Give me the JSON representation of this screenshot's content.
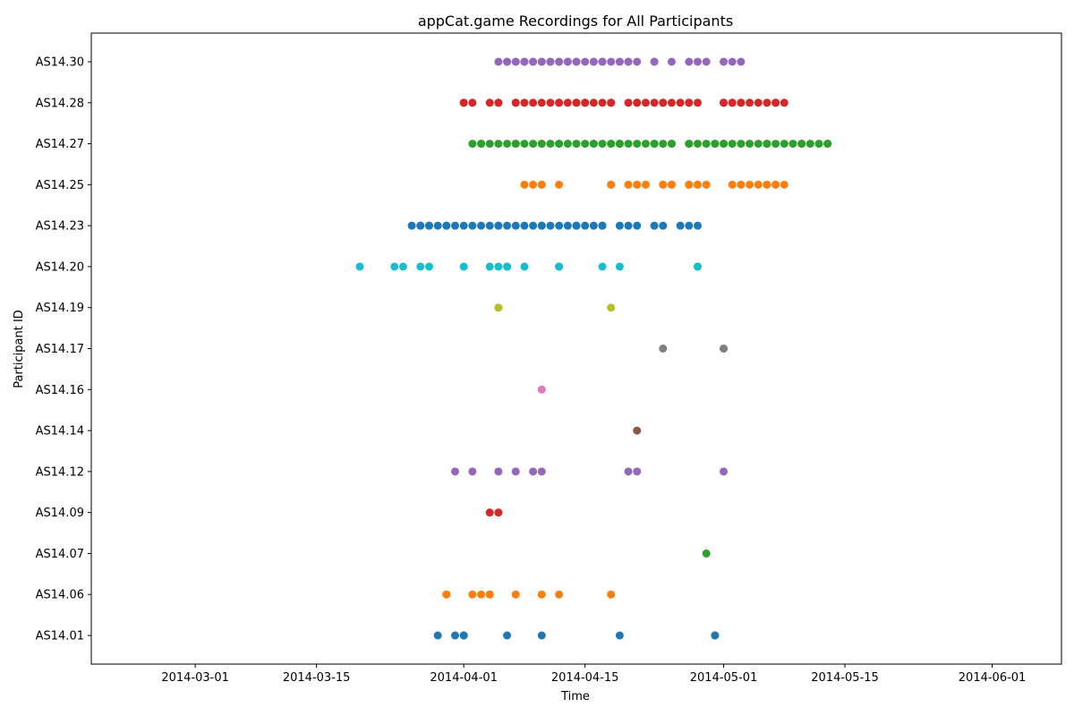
{
  "chart_data": {
    "type": "scatter",
    "title": "appCat.game Recordings for All Participants",
    "xlabel": "Time",
    "ylabel": "Participant ID",
    "x_ticks": [
      "2014-03-01",
      "2014-03-15",
      "2014-04-01",
      "2014-04-15",
      "2014-05-01",
      "2014-05-15",
      "2014-06-01"
    ],
    "xlim": [
      "2014-02-17",
      "2014-06-09"
    ],
    "categories": [
      "AS14.01",
      "AS14.06",
      "AS14.07",
      "AS14.09",
      "AS14.12",
      "AS14.14",
      "AS14.16",
      "AS14.17",
      "AS14.19",
      "AS14.20",
      "AS14.23",
      "AS14.25",
      "AS14.27",
      "AS14.28",
      "AS14.30"
    ],
    "grid": false,
    "legend": "none",
    "series": [
      {
        "participant": "AS14.01",
        "color": "#1f77b4",
        "x": [
          "2014-03-29",
          "2014-03-31",
          "2014-04-01",
          "2014-04-01",
          "2014-04-06",
          "2014-04-10",
          "2014-04-19",
          "2014-04-30",
          "2014-04-30"
        ]
      },
      {
        "participant": "AS14.06",
        "color": "#ff7f0e",
        "x": [
          "2014-03-30",
          "2014-03-30",
          "2014-04-02",
          "2014-04-03",
          "2014-04-04",
          "2014-04-04",
          "2014-04-07",
          "2014-04-10",
          "2014-04-12",
          "2014-04-18"
        ]
      },
      {
        "participant": "AS14.07",
        "color": "#2ca02c",
        "x": [
          "2014-04-29"
        ]
      },
      {
        "participant": "AS14.09",
        "color": "#d62728",
        "x": [
          "2014-04-04",
          "2014-04-05"
        ]
      },
      {
        "participant": "AS14.12",
        "color": "#9467bd",
        "x": [
          "2014-03-31",
          "2014-04-02",
          "2014-04-05",
          "2014-04-07",
          "2014-04-09",
          "2014-04-10",
          "2014-04-20",
          "2014-04-21",
          "2014-05-01"
        ]
      },
      {
        "participant": "AS14.14",
        "color": "#8c564b",
        "x": [
          "2014-04-21"
        ]
      },
      {
        "participant": "AS14.16",
        "color": "#e377c2",
        "x": [
          "2014-04-10"
        ]
      },
      {
        "participant": "AS14.17",
        "color": "#7f7f7f",
        "x": [
          "2014-04-24",
          "2014-05-01",
          "2014-05-01"
        ]
      },
      {
        "participant": "AS14.19",
        "color": "#bcbd22",
        "x": [
          "2014-04-05",
          "2014-04-05",
          "2014-04-18"
        ]
      },
      {
        "participant": "AS14.20",
        "color": "#17becf",
        "x": [
          "2014-03-20",
          "2014-03-24",
          "2014-03-25",
          "2014-03-27",
          "2014-03-28",
          "2014-04-01",
          "2014-04-04",
          "2014-04-05",
          "2014-04-06",
          "2014-04-06",
          "2014-04-08",
          "2014-04-12",
          "2014-04-12",
          "2014-04-17",
          "2014-04-19",
          "2014-04-28",
          "2014-04-28"
        ]
      },
      {
        "participant": "AS14.23",
        "color": "#1f77b4",
        "x": [
          "2014-03-26",
          "2014-03-27",
          "2014-03-27",
          "2014-03-28",
          "2014-03-28",
          "2014-03-29",
          "2014-03-30",
          "2014-03-30",
          "2014-03-31",
          "2014-04-01",
          "2014-04-02",
          "2014-04-03",
          "2014-04-04",
          "2014-04-05",
          "2014-04-05",
          "2014-04-06",
          "2014-04-07",
          "2014-04-08",
          "2014-04-09",
          "2014-04-10",
          "2014-04-10",
          "2014-04-11",
          "2014-04-12",
          "2014-04-13",
          "2014-04-14",
          "2014-04-14",
          "2014-04-15",
          "2014-04-16",
          "2014-04-17",
          "2014-04-17",
          "2014-04-19",
          "2014-04-20",
          "2014-04-21",
          "2014-04-23",
          "2014-04-24",
          "2014-04-26",
          "2014-04-27",
          "2014-04-28"
        ]
      },
      {
        "participant": "AS14.25",
        "color": "#ff7f0e",
        "x": [
          "2014-04-08",
          "2014-04-09",
          "2014-04-10",
          "2014-04-10",
          "2014-04-12",
          "2014-04-18",
          "2014-04-18",
          "2014-04-20",
          "2014-04-21",
          "2014-04-21",
          "2014-04-22",
          "2014-04-24",
          "2014-04-24",
          "2014-04-25",
          "2014-04-25",
          "2014-04-27",
          "2014-04-27",
          "2014-04-28",
          "2014-04-28",
          "2014-04-29",
          "2014-05-02",
          "2014-05-03",
          "2014-05-03",
          "2014-05-04",
          "2014-05-05",
          "2014-05-06",
          "2014-05-06",
          "2014-05-07",
          "2014-05-07",
          "2014-05-08"
        ]
      },
      {
        "participant": "AS14.27",
        "color": "#2ca02c",
        "x": [
          "2014-04-02",
          "2014-04-03",
          "2014-04-03",
          "2014-04-04",
          "2014-04-05",
          "2014-04-06",
          "2014-04-07",
          "2014-04-07",
          "2014-04-08",
          "2014-04-09",
          "2014-04-10",
          "2014-04-10",
          "2014-04-11",
          "2014-04-12",
          "2014-04-12",
          "2014-04-13",
          "2014-04-14",
          "2014-04-15",
          "2014-04-16",
          "2014-04-16",
          "2014-04-17",
          "2014-04-18",
          "2014-04-18",
          "2014-04-19",
          "2014-04-19",
          "2014-04-20",
          "2014-04-21",
          "2014-04-22",
          "2014-04-23",
          "2014-04-23",
          "2014-04-24",
          "2014-04-25",
          "2014-04-25",
          "2014-04-27",
          "2014-04-27",
          "2014-04-28",
          "2014-04-29",
          "2014-04-30",
          "2014-04-30",
          "2014-05-01",
          "2014-05-01",
          "2014-05-02",
          "2014-05-03",
          "2014-05-04",
          "2014-05-05",
          "2014-05-06",
          "2014-05-06",
          "2014-05-07",
          "2014-05-08",
          "2014-05-09",
          "2014-05-10",
          "2014-05-10",
          "2014-05-11",
          "2014-05-12",
          "2014-05-13",
          "2014-05-13"
        ]
      },
      {
        "participant": "AS14.28",
        "color": "#d62728",
        "x": [
          "2014-04-01",
          "2014-04-01",
          "2014-04-02",
          "2014-04-04",
          "2014-04-05",
          "2014-04-05",
          "2014-04-07",
          "2014-04-07",
          "2014-04-08",
          "2014-04-09",
          "2014-04-10",
          "2014-04-11",
          "2014-04-12",
          "2014-04-12",
          "2014-04-13",
          "2014-04-14",
          "2014-04-14",
          "2014-04-15",
          "2014-04-15",
          "2014-04-16",
          "2014-04-17",
          "2014-04-18",
          "2014-04-18",
          "2014-04-20",
          "2014-04-21",
          "2014-04-21",
          "2014-04-22",
          "2014-04-23",
          "2014-04-24",
          "2014-04-24",
          "2014-04-25",
          "2014-04-26",
          "2014-04-27",
          "2014-04-27",
          "2014-04-28",
          "2014-05-01",
          "2014-05-01",
          "2014-05-02",
          "2014-05-02",
          "2014-05-03",
          "2014-05-03",
          "2014-05-04",
          "2014-05-05",
          "2014-05-06",
          "2014-05-07",
          "2014-05-07",
          "2014-05-08"
        ]
      },
      {
        "participant": "AS14.30",
        "color": "#9467bd",
        "x": [
          "2014-04-05",
          "2014-04-06",
          "2014-04-06",
          "2014-04-07",
          "2014-04-07",
          "2014-04-08",
          "2014-04-08",
          "2014-04-09",
          "2014-04-09",
          "2014-04-10",
          "2014-04-10",
          "2014-04-11",
          "2014-04-11",
          "2014-04-12",
          "2014-04-12",
          "2014-04-13",
          "2014-04-13",
          "2014-04-14",
          "2014-04-14",
          "2014-04-15",
          "2014-04-16",
          "2014-04-16",
          "2014-04-17",
          "2014-04-17",
          "2014-04-18",
          "2014-04-19",
          "2014-04-19",
          "2014-04-20",
          "2014-04-20",
          "2014-04-21",
          "2014-04-23",
          "2014-04-23",
          "2014-04-25",
          "2014-04-27",
          "2014-04-28",
          "2014-04-29",
          "2014-05-01",
          "2014-05-02",
          "2014-05-03"
        ]
      }
    ]
  }
}
